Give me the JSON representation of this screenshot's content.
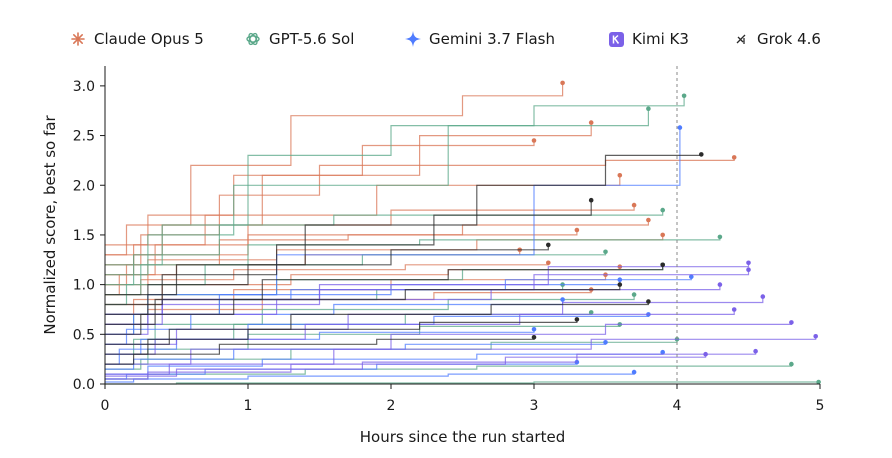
{
  "chart_data": {
    "type": "line",
    "xlabel": "Hours since the run started",
    "ylabel": "Normalized score, best so far",
    "xlim": [
      0,
      5
    ],
    "ylim": [
      0,
      3.2
    ],
    "x_ticks": [
      "0",
      "1",
      "2",
      "3",
      "4",
      "5"
    ],
    "y_ticks": [
      "0.0",
      "0.5",
      "1.0",
      "1.5",
      "2.0",
      "2.5",
      "3.0"
    ],
    "grid": false,
    "legend_placement": "top",
    "reference_line_x": 4.0,
    "series": [
      {
        "name": "Claude Opus 5",
        "color": "#d97757",
        "icon": "asterisk-icon",
        "runs": [
          {
            "x": [
              0,
              0.15,
              0.6,
              1.3,
              2.5,
              3.2
            ],
            "y": [
              1.3,
              1.6,
              2.2,
              2.7,
              2.9,
              3.03
            ]
          },
          {
            "x": [
              0,
              0.3,
              0.9,
              1.8,
              3.0
            ],
            "y": [
              1.4,
              1.7,
              2.1,
              2.4,
              2.45
            ]
          },
          {
            "x": [
              0,
              0.25,
              0.8,
              1.5,
              3.5,
              4.4
            ],
            "y": [
              1.2,
              1.5,
              1.9,
              2.2,
              2.25,
              2.28
            ]
          },
          {
            "x": [
              0,
              0.4,
              1.1,
              2.2,
              3.4
            ],
            "y": [
              1.3,
              1.6,
              2.1,
              2.5,
              2.63
            ]
          },
          {
            "x": [
              0,
              0.2,
              0.7,
              1.9,
              3.6
            ],
            "y": [
              1.2,
              1.4,
              1.7,
              2.0,
              2.1
            ]
          },
          {
            "x": [
              0,
              0.35,
              1.0,
              2.0,
              3.7
            ],
            "y": [
              1.1,
              1.4,
              1.6,
              1.75,
              1.8
            ]
          },
          {
            "x": [
              0,
              0.2,
              1.0,
              2.5,
              3.8
            ],
            "y": [
              1.1,
              1.3,
              1.5,
              1.6,
              1.65
            ]
          },
          {
            "x": [
              0,
              0.15,
              0.8,
              1.7,
              3.3
            ],
            "y": [
              1.0,
              1.2,
              1.45,
              1.5,
              1.55
            ]
          },
          {
            "x": [
              0,
              0.3,
              1.2,
              2.6,
              3.9
            ],
            "y": [
              1.0,
              1.25,
              1.35,
              1.45,
              1.5
            ]
          },
          {
            "x": [
              0,
              0.1,
              0.5,
              1.4,
              2.9
            ],
            "y": [
              0.9,
              1.1,
              1.2,
              1.3,
              1.35
            ]
          },
          {
            "x": [
              0,
              0.25,
              0.9,
              2.1,
              3.1
            ],
            "y": [
              0.9,
              1.05,
              1.15,
              1.2,
              1.22
            ]
          },
          {
            "x": [
              0,
              0.4,
              1.3,
              2.4,
              3.6
            ],
            "y": [
              0.8,
              1.0,
              1.1,
              1.15,
              1.18
            ]
          },
          {
            "x": [
              0,
              0.2,
              0.9,
              2.0,
              3.5
            ],
            "y": [
              0.7,
              0.85,
              0.95,
              1.05,
              1.1
            ]
          },
          {
            "x": [
              0,
              0.3,
              1.1,
              2.3,
              3.4
            ],
            "y": [
              0.6,
              0.75,
              0.85,
              0.92,
              0.95
            ]
          }
        ]
      },
      {
        "name": "GPT-5.6 Sol",
        "color": "#5ba88a",
        "icon": "openai-knot-icon",
        "runs": [
          {
            "x": [
              0,
              0.4,
              1.0,
              2.0,
              3.0,
              4.05
            ],
            "y": [
              1.2,
              1.6,
              2.3,
              2.6,
              2.8,
              2.9
            ]
          },
          {
            "x": [
              0,
              0.3,
              0.9,
              2.4,
              3.8
            ],
            "y": [
              1.1,
              1.5,
              2.0,
              2.6,
              2.77
            ]
          },
          {
            "x": [
              0,
              0.2,
              0.8,
              1.6,
              3.9
            ],
            "y": [
              1.0,
              1.3,
              1.6,
              1.7,
              1.75
            ]
          },
          {
            "x": [
              0,
              0.25,
              1.0,
              2.2,
              4.3
            ],
            "y": [
              0.9,
              1.2,
              1.4,
              1.45,
              1.48
            ]
          },
          {
            "x": [
              0,
              0.15,
              0.7,
              1.8,
              3.5
            ],
            "y": [
              0.8,
              1.0,
              1.2,
              1.3,
              1.33
            ]
          },
          {
            "x": [
              0,
              0.3,
              1.2,
              2.5,
              3.9
            ],
            "y": [
              0.7,
              0.9,
              1.05,
              1.15,
              1.2
            ]
          },
          {
            "x": [
              0,
              0.2,
              0.8,
              1.9,
              3.2
            ],
            "y": [
              0.5,
              0.7,
              0.85,
              0.95,
              1.0
            ]
          },
          {
            "x": [
              0,
              0.35,
              1.1,
              2.4,
              3.7
            ],
            "y": [
              0.4,
              0.6,
              0.75,
              0.85,
              0.9
            ]
          },
          {
            "x": [
              0,
              0.2,
              0.9,
              2.1,
              3.4
            ],
            "y": [
              0.3,
              0.45,
              0.6,
              0.7,
              0.72
            ]
          },
          {
            "x": [
              0,
              0.3,
              1.0,
              2.2,
              3.6
            ],
            "y": [
              0.2,
              0.35,
              0.5,
              0.58,
              0.6
            ]
          },
          {
            "x": [
              0,
              0.25,
              1.3,
              2.7,
              4.0
            ],
            "y": [
              0.15,
              0.25,
              0.35,
              0.42,
              0.45
            ]
          },
          {
            "x": [
              0,
              0.5,
              2.0,
              3.0,
              4.99
            ],
            "y": [
              0.0,
              0.01,
              0.01,
              0.02,
              0.02
            ]
          },
          {
            "x": [
              0,
              0.3,
              1.4,
              2.6,
              4.8
            ],
            "y": [
              0.05,
              0.1,
              0.15,
              0.18,
              0.2
            ]
          }
        ]
      },
      {
        "name": "Gemini 3.7 Flash",
        "color": "#4f7cff",
        "icon": "sparkle-icon",
        "runs": [
          {
            "x": [
              0,
              0.3,
              1.2,
              3.0,
              4.02
            ],
            "y": [
              0.6,
              0.9,
              1.3,
              2.0,
              2.58
            ]
          },
          {
            "x": [
              0,
              0.2,
              0.8,
              2.0,
              3.6
            ],
            "y": [
              0.5,
              0.7,
              0.9,
              1.0,
              1.05
            ]
          },
          {
            "x": [
              0,
              0.15,
              0.6,
              1.6,
              3.2
            ],
            "y": [
              0.4,
              0.55,
              0.7,
              0.8,
              0.85
            ]
          },
          {
            "x": [
              0,
              0.25,
              1.0,
              2.3,
              3.8
            ],
            "y": [
              0.3,
              0.45,
              0.6,
              0.68,
              0.7
            ]
          },
          {
            "x": [
              0,
              0.1,
              0.5,
              1.5,
              3.0
            ],
            "y": [
              0.2,
              0.35,
              0.45,
              0.52,
              0.55
            ]
          },
          {
            "x": [
              0,
              0.2,
              0.9,
              2.1,
              3.5
            ],
            "y": [
              0.15,
              0.25,
              0.35,
              0.4,
              0.42
            ]
          },
          {
            "x": [
              0,
              0.3,
              1.1,
              2.6,
              3.9
            ],
            "y": [
              0.1,
              0.18,
              0.25,
              0.3,
              0.32
            ]
          },
          {
            "x": [
              0,
              0.15,
              0.7,
              1.9,
              3.3
            ],
            "y": [
              0.05,
              0.1,
              0.15,
              0.2,
              0.22
            ]
          },
          {
            "x": [
              0,
              0.2,
              1.0,
              2.4,
              3.7
            ],
            "y": [
              0.02,
              0.05,
              0.08,
              0.1,
              0.12
            ]
          },
          {
            "x": [
              0,
              0.4,
              1.3,
              2.8,
              4.1
            ],
            "y": [
              0.7,
              0.85,
              0.95,
              1.05,
              1.08
            ]
          }
        ]
      },
      {
        "name": "Kimi K3",
        "color": "#7b61e8",
        "icon": "kimi-logo-icon",
        "runs": [
          {
            "x": [
              0,
              0.4,
              1.5,
              3.0,
              4.5
            ],
            "y": [
              0.6,
              0.8,
              0.95,
              1.1,
              1.15
            ]
          },
          {
            "x": [
              0,
              0.3,
              1.2,
              2.7,
              4.3
            ],
            "y": [
              0.5,
              0.7,
              0.85,
              0.95,
              1.0
            ]
          },
          {
            "x": [
              0,
              0.5,
              1.7,
              3.2,
              4.6
            ],
            "y": [
              0.4,
              0.55,
              0.7,
              0.82,
              0.88
            ]
          },
          {
            "x": [
              0,
              0.35,
              1.4,
              2.9,
              4.4
            ],
            "y": [
              0.3,
              0.45,
              0.6,
              0.7,
              0.75
            ]
          },
          {
            "x": [
              0,
              0.6,
              2.0,
              3.5,
              4.8
            ],
            "y": [
              0.2,
              0.35,
              0.5,
              0.6,
              0.62
            ]
          },
          {
            "x": [
              0,
              0.45,
              1.6,
              3.4,
              4.97
            ],
            "y": [
              0.1,
              0.2,
              0.35,
              0.45,
              0.48
            ]
          },
          {
            "x": [
              0,
              0.3,
              1.3,
              2.8,
              4.2
            ],
            "y": [
              0.05,
              0.12,
              0.2,
              0.27,
              0.3
            ]
          },
          {
            "x": [
              0,
              0.5,
              1.8,
              3.3,
              4.55
            ],
            "y": [
              0.08,
              0.15,
              0.22,
              0.3,
              0.33
            ]
          },
          {
            "x": [
              0,
              0.4,
              1.5,
              3.1,
              4.5
            ],
            "y": [
              0.7,
              0.85,
              1.0,
              1.18,
              1.22
            ]
          }
        ]
      },
      {
        "name": "Grok 4.6",
        "color": "#2b2b2b",
        "icon": "grok-logo-icon",
        "runs": [
          {
            "x": [
              0,
              0.5,
              1.4,
              2.6,
              3.5,
              4.17
            ],
            "y": [
              0.9,
              1.2,
              1.6,
              2.0,
              2.3,
              2.31
            ]
          },
          {
            "x": [
              0,
              0.4,
              1.2,
              2.3,
              3.4
            ],
            "y": [
              0.8,
              1.1,
              1.4,
              1.7,
              1.85
            ]
          },
          {
            "x": [
              0,
              0.3,
              1.0,
              2.0,
              3.1
            ],
            "y": [
              0.7,
              1.0,
              1.2,
              1.35,
              1.4
            ]
          },
          {
            "x": [
              0,
              0.35,
              1.1,
              2.4,
              3.9
            ],
            "y": [
              0.6,
              0.85,
              1.05,
              1.15,
              1.2
            ]
          },
          {
            "x": [
              0,
              0.25,
              0.9,
              2.1,
              3.6
            ],
            "y": [
              0.5,
              0.7,
              0.85,
              0.95,
              1.0
            ]
          },
          {
            "x": [
              0,
              0.45,
              1.3,
              2.7,
              3.8
            ],
            "y": [
              0.4,
              0.55,
              0.7,
              0.8,
              0.83
            ]
          },
          {
            "x": [
              0,
              0.3,
              1.0,
              2.2,
              3.3
            ],
            "y": [
              0.3,
              0.45,
              0.55,
              0.62,
              0.65
            ]
          },
          {
            "x": [
              0,
              0.2,
              0.8,
              1.9,
              3.0
            ],
            "y": [
              0.2,
              0.3,
              0.4,
              0.45,
              0.47
            ]
          }
        ]
      }
    ]
  }
}
